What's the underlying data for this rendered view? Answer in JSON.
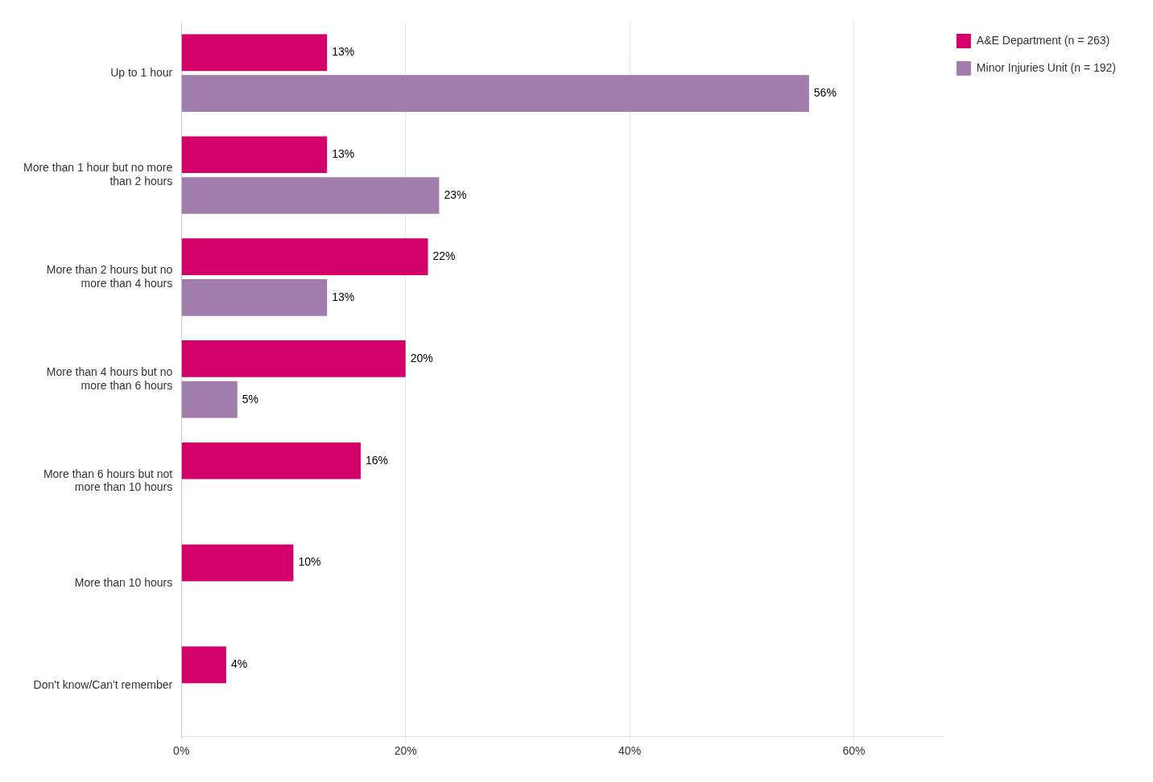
{
  "chart_data": {
    "type": "bar",
    "orientation": "horizontal",
    "categories": [
      "Up to 1 hour",
      "More than 1 hour but no more\nthan 2 hours",
      "More than 2 hours but no\nmore than 4 hours",
      "More than 4 hours but no\nmore than 6 hours",
      "More than 6 hours but not\nmore than 10 hours",
      "More than 10 hours",
      "Don't know/Can't remember"
    ],
    "series": [
      {
        "name": "A&E Department (n = 263)",
        "color": "#D4006A",
        "values": [
          13,
          13,
          22,
          20,
          16,
          10,
          4
        ],
        "value_labels": [
          "13%",
          "13%",
          "22%",
          "20%",
          "16%",
          "10%",
          "4%"
        ]
      },
      {
        "name": "Minor Injuries Unit (n = 192)",
        "color": "#A07DAA",
        "values": [
          56,
          23,
          13,
          5,
          0,
          0,
          0
        ],
        "value_labels": [
          "56%",
          "23%",
          "13%",
          "5%",
          null,
          null,
          null
        ]
      }
    ],
    "xlim": [
      0,
      68
    ],
    "xticks": [
      {
        "value": 0,
        "label": "0%"
      },
      {
        "value": 20,
        "label": "20%"
      },
      {
        "value": 40,
        "label": "40%"
      },
      {
        "value": 60,
        "label": "60%"
      }
    ],
    "grid": true,
    "legend": "upper right",
    "data_labels": true
  }
}
